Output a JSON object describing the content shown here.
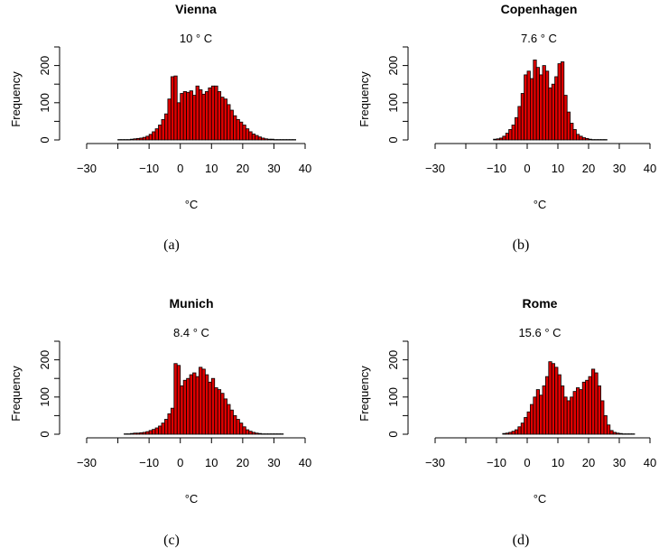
{
  "style": {
    "bar_fill": "#e00000",
    "bar_edge": "#000000",
    "background": "#ffffff"
  },
  "chart_data": [
    {
      "type": "bar",
      "panel": "a",
      "title": "Vienna",
      "subtitle": "10 ° C",
      "caption": "(a)",
      "xlabel": "°C",
      "ylabel": "Frequency",
      "xlim": [
        -30,
        40
      ],
      "ylim": [
        0,
        250
      ],
      "xticks": [
        -30,
        -20,
        -10,
        0,
        10,
        20,
        30,
        40
      ],
      "xtick_labels": [
        "−30",
        "",
        "−10",
        "0",
        "10",
        "20",
        "30",
        "40"
      ],
      "yticks": [
        0,
        100,
        200
      ],
      "yticks_minor": [
        50,
        150,
        250
      ],
      "bin_width": 1,
      "bins_start": -20,
      "values": [
        1,
        1,
        1,
        1,
        2,
        3,
        4,
        5,
        7,
        10,
        15,
        22,
        30,
        40,
        55,
        70,
        110,
        170,
        172,
        100,
        125,
        130,
        128,
        132,
        120,
        145,
        135,
        123,
        130,
        140,
        145,
        145,
        130,
        115,
        110,
        95,
        80,
        65,
        55,
        48,
        40,
        30,
        22,
        16,
        12,
        8,
        5,
        3,
        2,
        2,
        1,
        1,
        1,
        1,
        1,
        1,
        1
      ]
    },
    {
      "type": "bar",
      "panel": "b",
      "title": "Copenhagen",
      "subtitle": "7.6 ° C",
      "caption": "(b)",
      "xlabel": "°C",
      "ylabel": "Frequency",
      "xlim": [
        -30,
        40
      ],
      "ylim": [
        0,
        250
      ],
      "xticks": [
        -30,
        -20,
        -10,
        0,
        10,
        20,
        30,
        40
      ],
      "xtick_labels": [
        "−30",
        "",
        "−10",
        "0",
        "10",
        "20",
        "30",
        "40"
      ],
      "yticks": [
        0,
        100,
        200
      ],
      "yticks_minor": [
        50,
        150,
        250
      ],
      "bin_width": 1,
      "bins_start": -11,
      "values": [
        2,
        3,
        5,
        10,
        18,
        28,
        40,
        60,
        90,
        125,
        175,
        185,
        165,
        215,
        195,
        175,
        200,
        185,
        140,
        150,
        170,
        205,
        210,
        120,
        75,
        45,
        28,
        15,
        10,
        6,
        4,
        2,
        1,
        1,
        1,
        1,
        1
      ]
    },
    {
      "type": "bar",
      "panel": "c",
      "title": "Munich",
      "subtitle": "8.4 ° C",
      "caption": "(c)",
      "xlabel": "°C",
      "ylabel": "Frequency",
      "xlim": [
        -30,
        40
      ],
      "ylim": [
        0,
        250
      ],
      "xticks": [
        -30,
        -20,
        -10,
        0,
        10,
        20,
        30,
        40
      ],
      "xtick_labels": [
        "−30",
        "",
        "−10",
        "0",
        "10",
        "20",
        "30",
        "40"
      ],
      "yticks": [
        0,
        100,
        200
      ],
      "yticks_minor": [
        50,
        150,
        250
      ],
      "bin_width": 1,
      "bins_start": -18,
      "values": [
        1,
        1,
        2,
        3,
        3,
        4,
        5,
        7,
        10,
        13,
        17,
        22,
        30,
        40,
        55,
        70,
        190,
        185,
        130,
        145,
        150,
        160,
        165,
        155,
        180,
        175,
        160,
        140,
        150,
        125,
        120,
        110,
        95,
        80,
        65,
        50,
        40,
        30,
        20,
        12,
        8,
        5,
        3,
        2,
        1,
        1,
        1,
        1,
        1,
        1,
        1
      ]
    },
    {
      "type": "bar",
      "panel": "d",
      "title": "Rome",
      "subtitle": "15.6 ° C",
      "caption": "(d)",
      "xlabel": "°C",
      "ylabel": "Frequency",
      "xlim": [
        -30,
        40
      ],
      "ylim": [
        0,
        250
      ],
      "xticks": [
        -30,
        -20,
        -10,
        0,
        10,
        20,
        30,
        40
      ],
      "xtick_labels": [
        "−30",
        "",
        "−10",
        "0",
        "10",
        "20",
        "30",
        "40"
      ],
      "yticks": [
        0,
        100,
        200
      ],
      "yticks_minor": [
        50,
        150,
        250
      ],
      "bin_width": 1,
      "bins_start": -8,
      "values": [
        2,
        3,
        5,
        8,
        12,
        20,
        30,
        45,
        60,
        80,
        100,
        120,
        105,
        130,
        155,
        195,
        190,
        180,
        160,
        130,
        100,
        90,
        100,
        115,
        125,
        120,
        140,
        145,
        155,
        175,
        165,
        130,
        90,
        50,
        25,
        10,
        5,
        3,
        2,
        1,
        1,
        1,
        1
      ]
    }
  ]
}
